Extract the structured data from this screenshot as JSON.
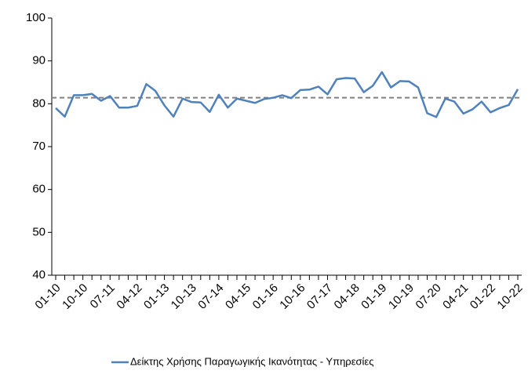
{
  "chart_data": {
    "type": "line",
    "categories": [
      "01-10",
      null,
      null,
      "10-10",
      null,
      null,
      "07-11",
      null,
      null,
      "04-12",
      null,
      null,
      "01-13",
      null,
      null,
      "10-13",
      null,
      null,
      "07-14",
      null,
      null,
      "04-15",
      null,
      null,
      "01-16",
      null,
      null,
      "10-16",
      null,
      null,
      "07-17",
      null,
      null,
      "04-18",
      null,
      null,
      "01-19",
      null,
      null,
      "10-19",
      null,
      null,
      "07-20",
      null,
      null,
      "04-21",
      null,
      null,
      "01-22",
      null,
      null,
      "10-22"
    ],
    "series": [
      {
        "name": "Δείκτης Χρήσης Παραγωγικής Ικανότητας - Υπηρεσίες",
        "color": "#4f81bd",
        "values": [
          79,
          77,
          82,
          82,
          82.3,
          80.7,
          81.8,
          79.1,
          79.1,
          79.5,
          84.6,
          83,
          79.6,
          77,
          81.2,
          80.4,
          80.3,
          78.1,
          82.1,
          79.1,
          81.2,
          80.7,
          80.2,
          81.1,
          81.4,
          82,
          81.3,
          83.2,
          83.3,
          84,
          82.2,
          85.7,
          86,
          85.9,
          82.7,
          84.2,
          87.4,
          83.8,
          85.3,
          85.2,
          83.8,
          77.8,
          76.9,
          81.2,
          80.5,
          77.7,
          78.7,
          80.5,
          78,
          79,
          79.7,
          83.4
        ]
      }
    ],
    "reference_line": {
      "value": 81.4,
      "color": "#808080"
    },
    "ylim": [
      40,
      100
    ],
    "yticks": [
      40,
      50,
      60,
      70,
      80,
      90,
      100
    ],
    "legend": "bottom"
  }
}
